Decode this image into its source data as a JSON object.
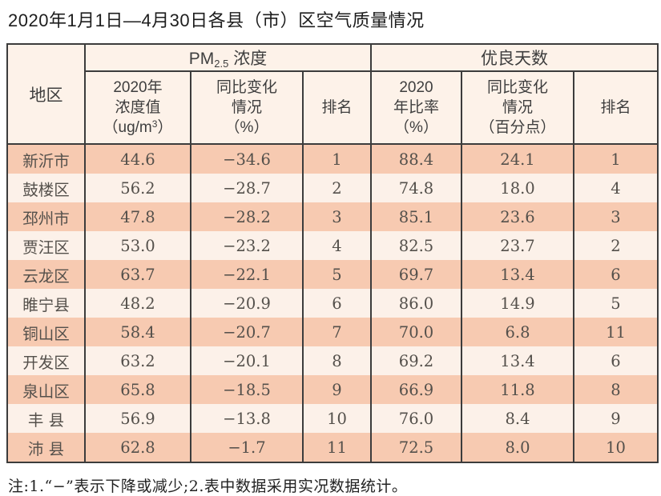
{
  "title": "2020年1月1日—4月30日各县（市）区空气质量情况",
  "note": "注:1.“−”表示下降或减少;2.表中数据采用实况数据统计。",
  "colors": {
    "row_dark": "#f7cab1",
    "row_light": "#fcf1e9",
    "header_bg": "#fdf2e9",
    "border": "#3c3c3c",
    "text": "#54504b"
  },
  "table": {
    "region_header": "地区",
    "group_pm": {
      "prefix": "PM",
      "subscript": "2.5",
      "suffix": " 浓度"
    },
    "group_days": "优良天数",
    "col_pm_value": {
      "line1": "2020年",
      "line2": "浓度值",
      "paren_open": "（ug/m",
      "superscript": "3",
      "paren_close": "）"
    },
    "col_pm_change": {
      "line1": "同比变化",
      "line2": "情况",
      "line3": "（%）"
    },
    "col_pm_rank": "排名",
    "col_ratio": {
      "line1": "2020",
      "line2": "年比率",
      "line3": "（%）"
    },
    "col_ratio_change": {
      "line1": "同比变化",
      "line2": "情况",
      "line3": "（百分点）"
    },
    "col_ratio_rank": "排名",
    "rows": [
      {
        "region": "新沂市",
        "pm_value": "44.6",
        "pm_change": "−34.6",
        "pm_rank": "1",
        "ratio": "88.4",
        "ratio_change": "24.1",
        "ratio_rank": "1"
      },
      {
        "region": "鼓楼区",
        "pm_value": "56.2",
        "pm_change": "−28.7",
        "pm_rank": "2",
        "ratio": "74.8",
        "ratio_change": "18.0",
        "ratio_rank": "4"
      },
      {
        "region": "邳州市",
        "pm_value": "47.8",
        "pm_change": "−28.2",
        "pm_rank": "3",
        "ratio": "85.1",
        "ratio_change": "23.6",
        "ratio_rank": "3"
      },
      {
        "region": "贾汪区",
        "pm_value": "53.0",
        "pm_change": "−23.2",
        "pm_rank": "4",
        "ratio": "82.5",
        "ratio_change": "23.7",
        "ratio_rank": "2"
      },
      {
        "region": "云龙区",
        "pm_value": "63.7",
        "pm_change": "−22.1",
        "pm_rank": "5",
        "ratio": "69.7",
        "ratio_change": "13.4",
        "ratio_rank": "6"
      },
      {
        "region": "睢宁县",
        "pm_value": "48.2",
        "pm_change": "−20.9",
        "pm_rank": "6",
        "ratio": "86.0",
        "ratio_change": "14.9",
        "ratio_rank": "5"
      },
      {
        "region": "铜山区",
        "pm_value": "58.4",
        "pm_change": "−20.7",
        "pm_rank": "7",
        "ratio": "70.0",
        "ratio_change": "6.8",
        "ratio_rank": "11"
      },
      {
        "region": "开发区",
        "pm_value": "63.2",
        "pm_change": "−20.1",
        "pm_rank": "8",
        "ratio": "69.2",
        "ratio_change": "13.4",
        "ratio_rank": "6"
      },
      {
        "region": "泉山区",
        "pm_value": "65.8",
        "pm_change": "−18.5",
        "pm_rank": "9",
        "ratio": "66.9",
        "ratio_change": "11.8",
        "ratio_rank": "8"
      },
      {
        "region": "丰 县",
        "pm_value": "56.9",
        "pm_change": "−13.8",
        "pm_rank": "10",
        "ratio": "76.0",
        "ratio_change": "8.4",
        "ratio_rank": "9"
      },
      {
        "region": "沛 县",
        "pm_value": "62.8",
        "pm_change": "−1.7",
        "pm_rank": "11",
        "ratio": "72.5",
        "ratio_change": "8.0",
        "ratio_rank": "10"
      }
    ]
  },
  "chart_data": {
    "type": "table",
    "title": "2020年1月1日—4月30日各县（市）区空气质量情况",
    "column_groups": [
      "地区",
      "PM2.5浓度",
      "优良天数"
    ],
    "columns": [
      "地区",
      "2020年浓度值（ug/m3）",
      "同比变化情况（%）",
      "排名",
      "2020年比率（%）",
      "同比变化情况（百分点）",
      "排名"
    ],
    "rows": [
      [
        "新沂市",
        44.6,
        -34.6,
        1,
        88.4,
        24.1,
        1
      ],
      [
        "鼓楼区",
        56.2,
        -28.7,
        2,
        74.8,
        18.0,
        4
      ],
      [
        "邳州市",
        47.8,
        -28.2,
        3,
        85.1,
        23.6,
        3
      ],
      [
        "贾汪区",
        53.0,
        -23.2,
        4,
        82.5,
        23.7,
        2
      ],
      [
        "云龙区",
        63.7,
        -22.1,
        5,
        69.7,
        13.4,
        6
      ],
      [
        "睢宁县",
        48.2,
        -20.9,
        6,
        86.0,
        14.9,
        5
      ],
      [
        "铜山区",
        58.4,
        -20.7,
        7,
        70.0,
        6.8,
        11
      ],
      [
        "开发区",
        63.2,
        -20.1,
        8,
        69.2,
        13.4,
        6
      ],
      [
        "泉山区",
        65.8,
        -18.5,
        9,
        66.9,
        11.8,
        8
      ],
      [
        "丰县",
        56.9,
        -13.8,
        10,
        76.0,
        8.4,
        9
      ],
      [
        "沛县",
        62.8,
        -1.7,
        11,
        72.5,
        8.0,
        10
      ]
    ],
    "note": "注:1.“−”表示下降或减少;2.表中数据采用实况数据统计。"
  }
}
